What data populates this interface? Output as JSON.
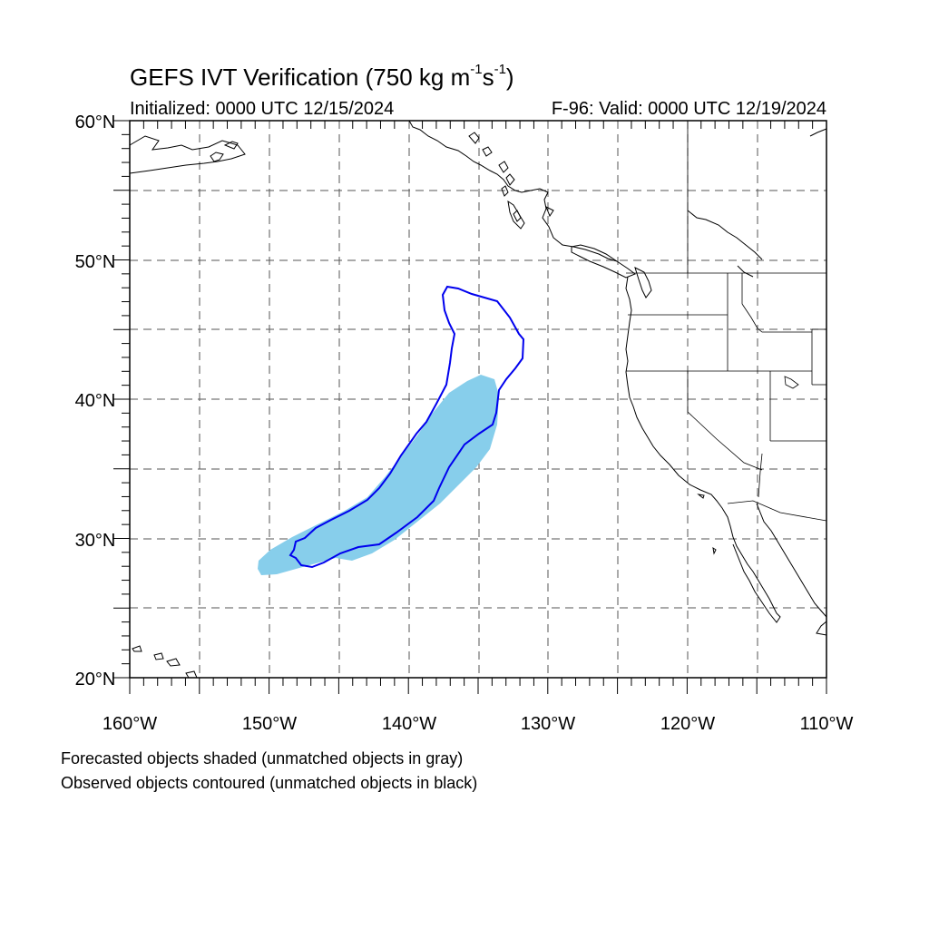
{
  "title": {
    "main": "GEFS IVT Verification (750 kg m",
    "exp1": "-1",
    "mid": "s",
    "exp2": "-1",
    "close": ")"
  },
  "initialized": "Initialized: 0000 UTC 12/15/2024",
  "valid": "F-96: Valid: 0000 UTC 12/19/2024",
  "axes": {
    "lon_labels": [
      "160°W",
      "150°W",
      "140°W",
      "130°W",
      "120°W",
      "110°W"
    ],
    "lat_labels": [
      "60°N",
      "50°N",
      "40°N",
      "30°N",
      "20°N"
    ]
  },
  "colors": {
    "forecast_fill": "#87ceeb",
    "observed_contour": "#0000ee",
    "coast": "#000000",
    "grid": "#555555"
  },
  "legend": {
    "line1": "Forecasted objects shaded (unmatched objects in gray)",
    "line2": "Observed objects contoured (unmatched objects in black)"
  }
}
